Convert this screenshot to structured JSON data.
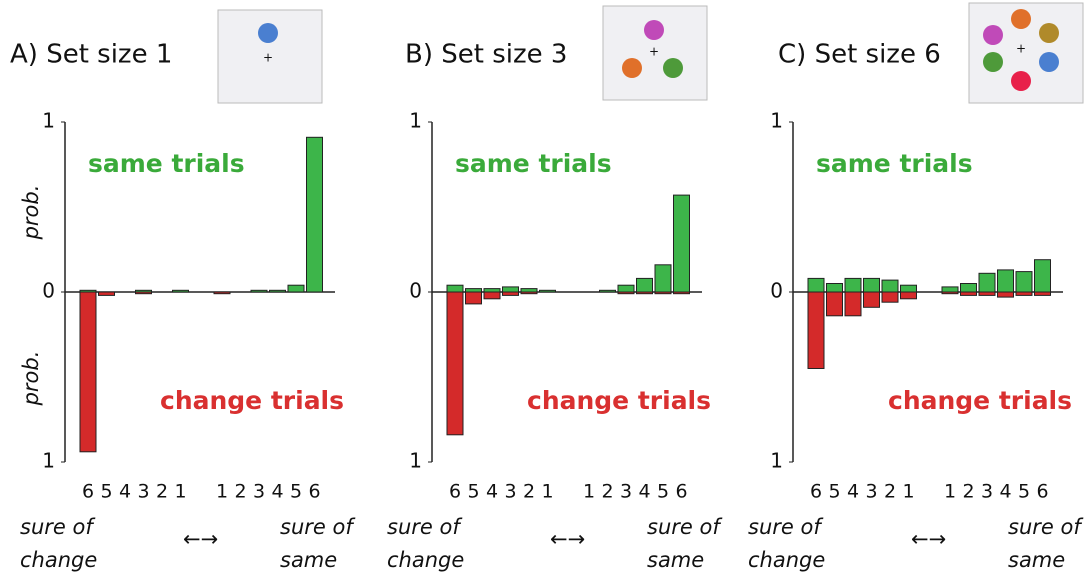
{
  "chart_data": [
    {
      "type": "bar",
      "title": "A) Set size 1",
      "categories": [
        "6",
        "5",
        "4",
        "3",
        "2",
        "1",
        "1",
        "2",
        "3",
        "4",
        "5",
        "6"
      ],
      "series": [
        {
          "name": "same trials",
          "color": "#3db54a",
          "values": [
            0.01,
            0,
            0,
            0.01,
            0,
            0.01,
            0,
            0,
            0.01,
            0.01,
            0.04,
            0.91
          ]
        },
        {
          "name": "change trials",
          "color": "#d42a2a",
          "values": [
            -0.94,
            -0.02,
            0,
            -0.01,
            0,
            0,
            -0.01,
            0,
            0,
            0,
            0,
            0
          ]
        }
      ],
      "ylim": [
        -1,
        1
      ],
      "yticks": [
        {
          "value": -1,
          "label": "1"
        },
        0,
        1
      ],
      "y_labels": [
        "prob.",
        "prob."
      ],
      "x_notes": [
        [
          "sure of",
          "change"
        ],
        "←→",
        [
          "sure of",
          "same"
        ]
      ]
    },
    {
      "type": "bar",
      "title": "B) Set size 3",
      "categories": [
        "6",
        "5",
        "4",
        "3",
        "2",
        "1",
        "1",
        "2",
        "3",
        "4",
        "5",
        "6"
      ],
      "series": [
        {
          "name": "same trials",
          "color": "#3db54a",
          "values": [
            0.04,
            0.02,
            0.02,
            0.03,
            0.02,
            0.01,
            0,
            0.01,
            0.04,
            0.08,
            0.16,
            0.57
          ]
        },
        {
          "name": "change trials",
          "color": "#d42a2a",
          "values": [
            -0.84,
            -0.07,
            -0.04,
            -0.02,
            -0.01,
            0,
            0,
            0,
            -0.01,
            -0.01,
            -0.01,
            -0.01
          ]
        }
      ],
      "ylim": [
        -1,
        1
      ],
      "yticks": [
        {
          "value": -1,
          "label": "1"
        },
        0,
        1
      ],
      "x_notes": [
        [
          "sure of",
          "change"
        ],
        "←→",
        [
          "sure of",
          "same"
        ]
      ]
    },
    {
      "type": "bar",
      "title": "C) Set size 6",
      "categories": [
        "6",
        "5",
        "4",
        "3",
        "2",
        "1",
        "1",
        "2",
        "3",
        "4",
        "5",
        "6"
      ],
      "series": [
        {
          "name": "same trials",
          "color": "#3db54a",
          "values": [
            0.08,
            0.05,
            0.08,
            0.08,
            0.07,
            0.04,
            0.03,
            0.05,
            0.11,
            0.13,
            0.12,
            0.19
          ]
        },
        {
          "name": "change trials",
          "color": "#d42a2a",
          "values": [
            -0.45,
            -0.14,
            -0.14,
            -0.09,
            -0.06,
            -0.04,
            -0.01,
            -0.02,
            -0.02,
            -0.03,
            -0.02,
            -0.02
          ]
        }
      ],
      "ylim": [
        -1,
        1
      ],
      "yticks": [
        {
          "value": -1,
          "label": "1"
        },
        0,
        1
      ],
      "x_notes": [
        [
          "sure of",
          "change"
        ],
        "←→",
        [
          "sure of",
          "same"
        ]
      ]
    }
  ]
}
